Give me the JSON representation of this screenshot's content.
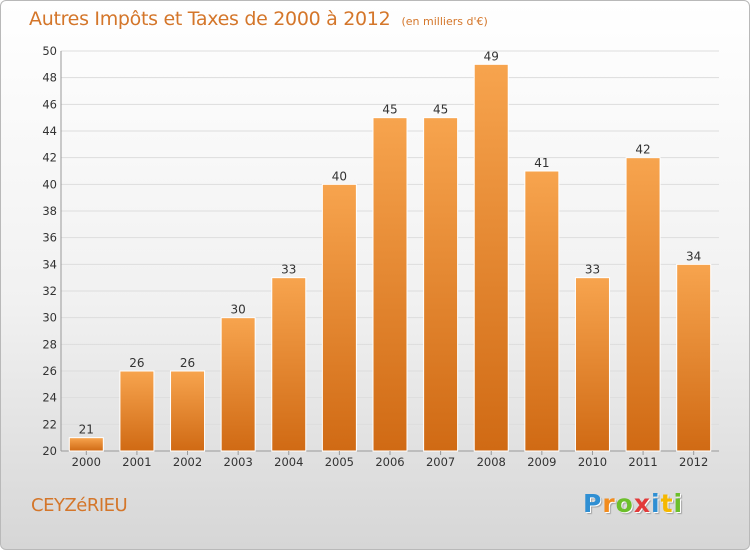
{
  "header": {
    "title": "Autres Impôts et Taxes de 2000 à 2012",
    "subtitle": "(en milliers d'€)"
  },
  "footer": {
    "commune": "CEYZéRIEU",
    "logo_letters": [
      "P",
      "r",
      "o",
      "x",
      "i",
      "t",
      "i"
    ],
    "logo_colors": [
      "#2f8fd3",
      "#f28c1e",
      "#6cbf2b",
      "#e23a3a",
      "#2f8fd3",
      "#f5b800",
      "#6cbf2b"
    ]
  },
  "colors": {
    "bar_top": "#f7a44e",
    "bar_bottom": "#d06a14",
    "bar_stroke": "#ffffff",
    "grid": "#dddddd",
    "axis_text": "#333333",
    "title": "#d4762a"
  },
  "chart_data": {
    "type": "bar",
    "categories": [
      "2000",
      "2001",
      "2002",
      "2003",
      "2004",
      "2005",
      "2006",
      "2007",
      "2008",
      "2009",
      "2010",
      "2011",
      "2012"
    ],
    "values": [
      21,
      26,
      26,
      30,
      33,
      40,
      45,
      45,
      49,
      41,
      33,
      42,
      34
    ],
    "ylim": [
      20,
      50
    ],
    "yticks": [
      20,
      22,
      24,
      26,
      28,
      30,
      32,
      34,
      36,
      38,
      40,
      42,
      44,
      46,
      48,
      50
    ],
    "grid": true
  }
}
